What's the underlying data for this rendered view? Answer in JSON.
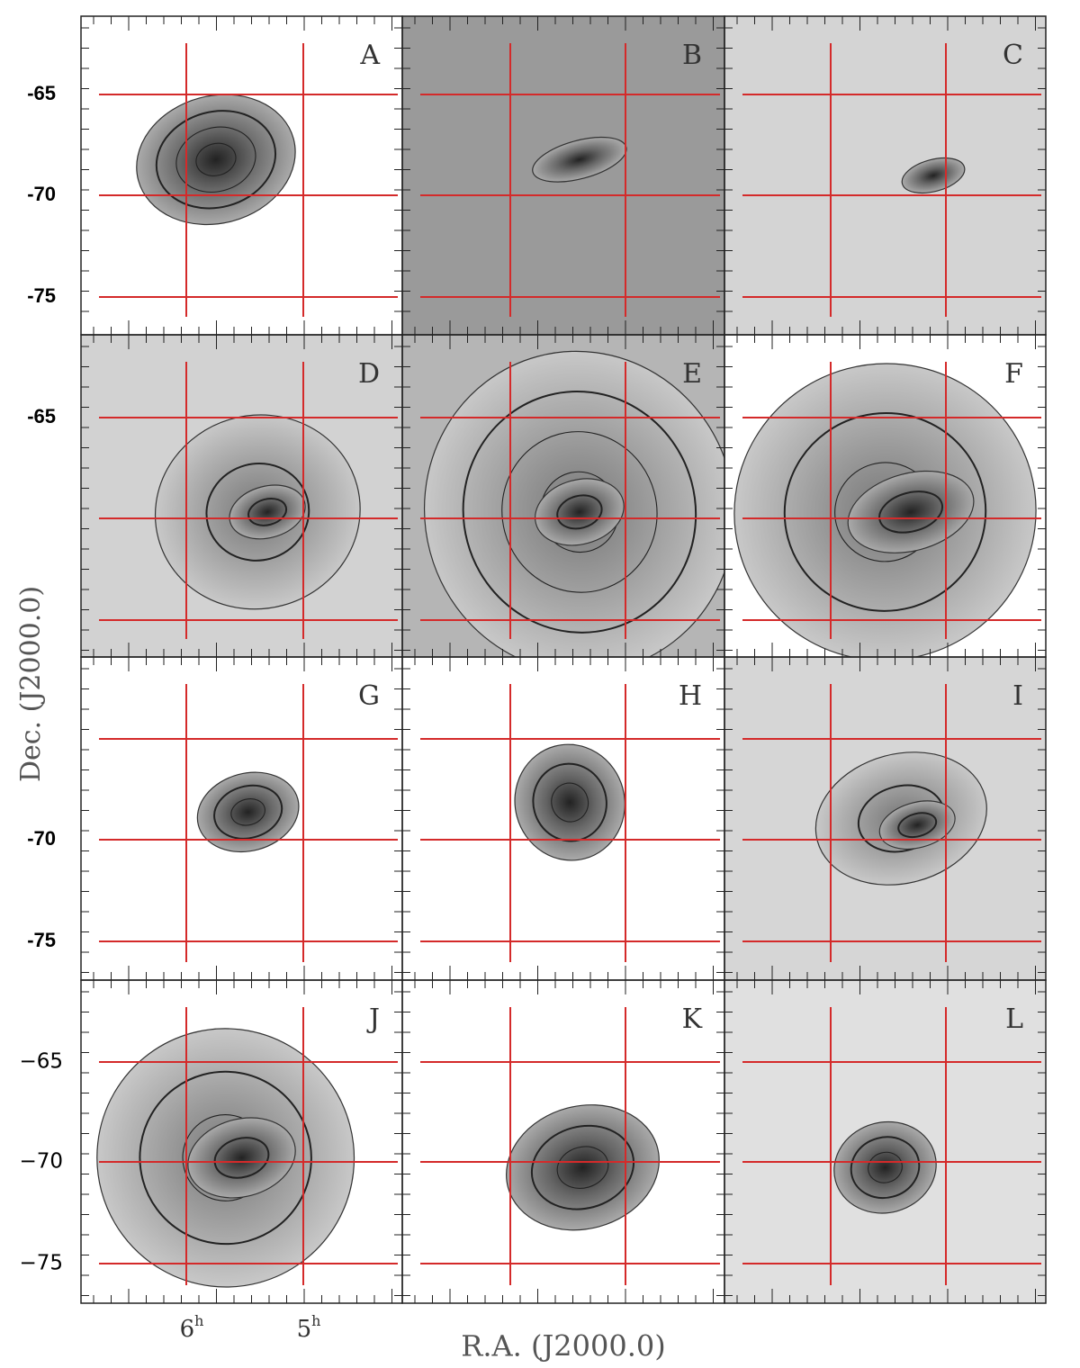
{
  "panels": [
    "A",
    "B",
    "C",
    "D",
    "E",
    "F",
    "G",
    "H",
    "I",
    "J",
    "K",
    "L"
  ],
  "y_tick_labels": [
    [
      "-65",
      "-70",
      "-75"
    ],
    [
      "-65",
      null,
      null
    ],
    [
      null,
      "-70",
      "-75"
    ],
    [
      "−65",
      "−70",
      "−75"
    ]
  ],
  "x_tick_labels": [
    {
      "base": "6",
      "sup": "h"
    },
    {
      "base": "5",
      "sup": "h"
    }
  ],
  "y_axis_label": "Dec.  (J2000.0)",
  "x_axis_label": "R.A.  (J2000.0)"
}
